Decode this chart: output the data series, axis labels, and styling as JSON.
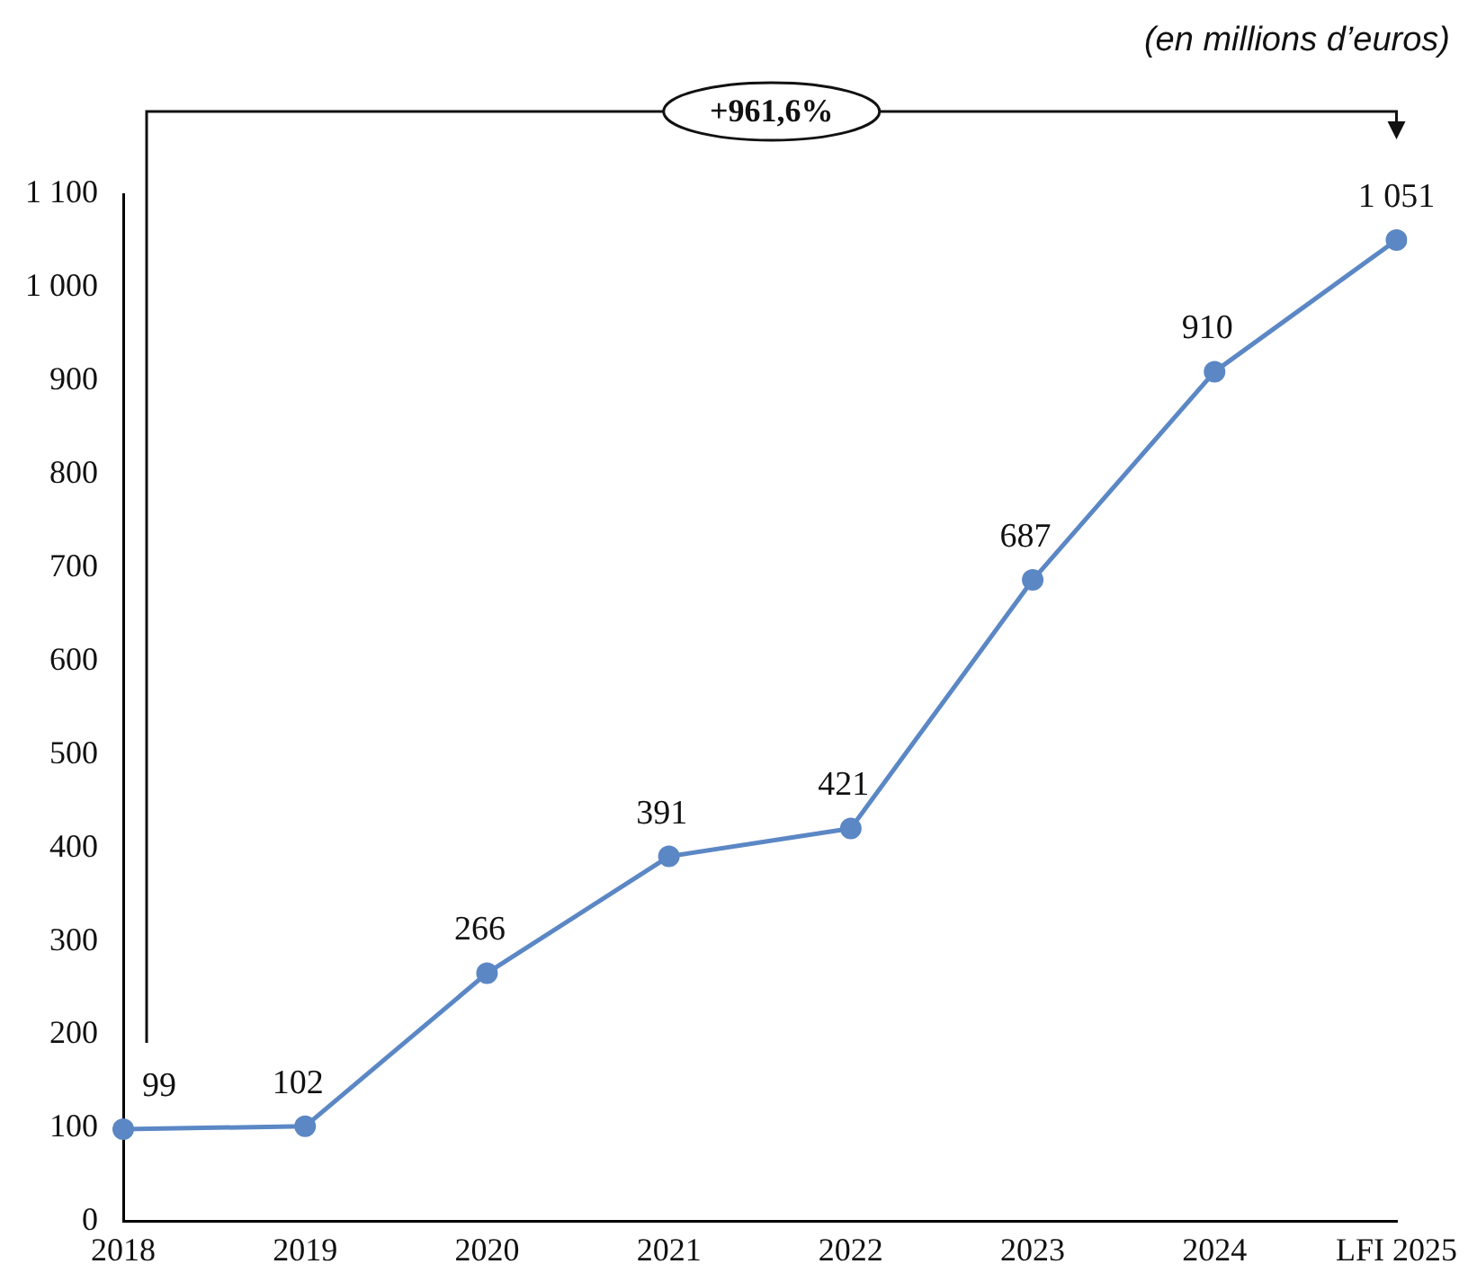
{
  "chart_data": {
    "type": "line",
    "categories": [
      "2018",
      "2019",
      "2020",
      "2021",
      "2022",
      "2023",
      "2024",
      "LFI 2025"
    ],
    "series": [
      {
        "color": "#5b87c5",
        "values": [
          99,
          102,
          266,
          391,
          421,
          687,
          910,
          1051
        ],
        "value_labels": [
          "99",
          "102",
          "266",
          "391",
          "421",
          "687",
          "910",
          "1 051"
        ]
      }
    ],
    "ylim": [
      0,
      1100
    ],
    "yticks": [
      0,
      100,
      200,
      300,
      400,
      500,
      600,
      700,
      800,
      900,
      {
        "value": 1000,
        "label": "1 000"
      },
      {
        "value": 1100,
        "label": "1 100"
      }
    ],
    "annotations": [
      "(en millions d’euros)",
      "+961,6%"
    ],
    "grid": false,
    "legend": false,
    "marker": "circle",
    "line_style": "solid"
  }
}
